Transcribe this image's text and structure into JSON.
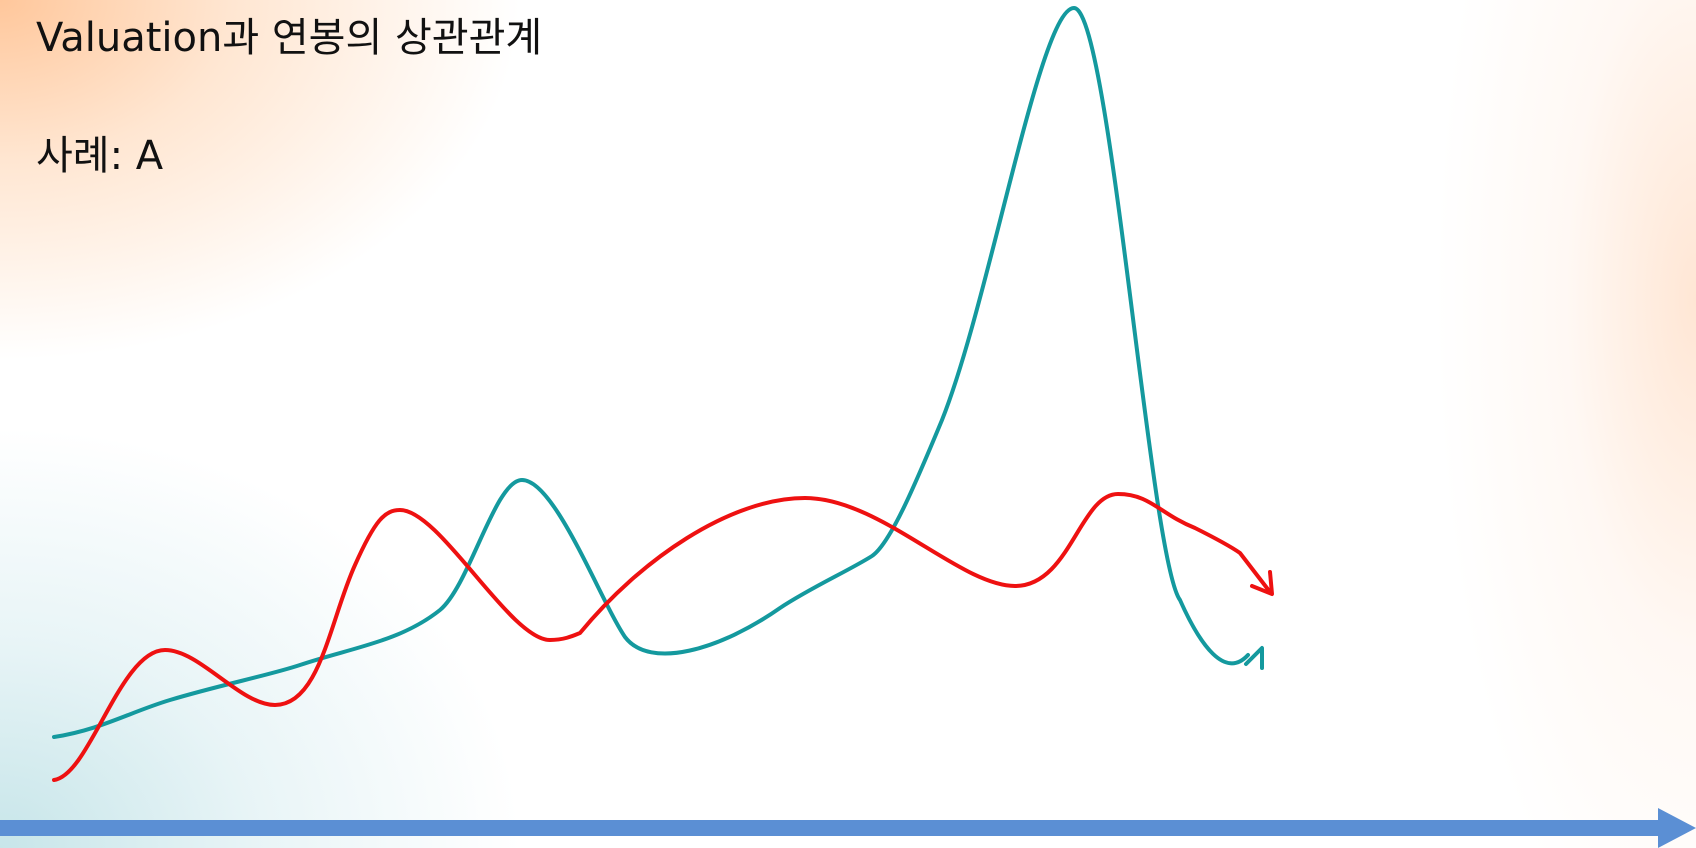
{
  "slide": {
    "title": "Valuation과 연봉의 상관관계",
    "subtitle": "사례: A"
  },
  "colors": {
    "teal_line": "#14999e",
    "red_line": "#ee1111",
    "axis_arrow": "#5b8fd4"
  }
}
